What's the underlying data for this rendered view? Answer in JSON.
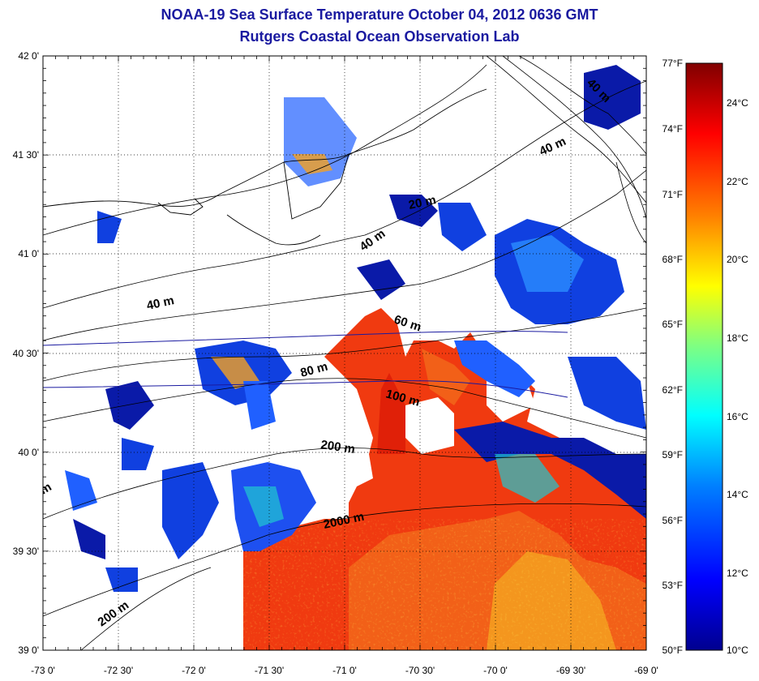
{
  "header": {
    "title": "NOAA-19 Sea Surface Temperature October 04, 2012 0636 GMT",
    "subtitle": "Rutgers Coastal Ocean Observation Lab"
  },
  "axes": {
    "longitude_labels": [
      "-73 0'",
      "-72 30'",
      "-72 0'",
      "-71 30'",
      "-71 0'",
      "-70 30'",
      "-70 0'",
      "-69 30'",
      "-69 0'"
    ],
    "latitude_labels": [
      "42 0'",
      "41 30'",
      "41 0'",
      "40 30'",
      "40 0'",
      "39 30'",
      "39 0'"
    ]
  },
  "colorbar": {
    "fahrenheit_labels": [
      "77°F",
      "74°F",
      "71°F",
      "68°F",
      "65°F",
      "62°F",
      "59°F",
      "56°F",
      "53°F",
      "50°F"
    ],
    "celsius_labels": [
      "24°C",
      "22°C",
      "20°C",
      "18°C",
      "16°C",
      "14°C",
      "12°C",
      "10°C"
    ],
    "colors": [
      "#00008f",
      "#0000ff",
      "#0080ff",
      "#00ffff",
      "#80ff80",
      "#ffff00",
      "#ff8000",
      "#ff0000",
      "#800000"
    ]
  },
  "contours": {
    "labels": [
      "40 m",
      "40 m",
      "20 m",
      "40 m",
      "60 m",
      "80 m",
      "100 m",
      "200 m",
      "2000 m",
      "200 m",
      "m",
      "40 m"
    ]
  },
  "map_colors": {
    "warm": "#f03a10",
    "hot": "#e02008",
    "mid": "#f5a020",
    "cool": "#2060ff",
    "cold": "#0a1aa8",
    "aqua": "#20c8d0"
  }
}
